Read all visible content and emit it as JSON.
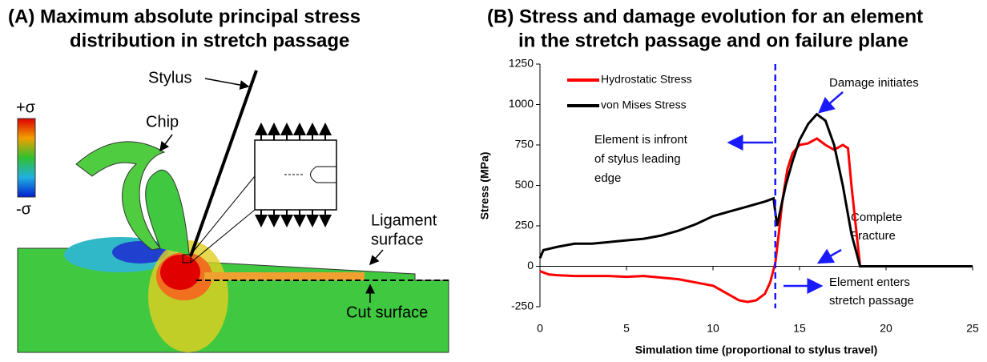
{
  "panel_a": {
    "title": [
      "(A)  Maximum absolute principal stress",
      "distribution in stretch passage"
    ],
    "labels": {
      "stylus": "Stylus",
      "chip": "Chip",
      "plus": "+σ",
      "minus": "-σ",
      "ligament": [
        "Ligament",
        "surface"
      ],
      "cut": "Cut surface"
    }
  },
  "chart_data": {
    "type": "line",
    "title": [
      "(B)  Stress and damage evolution for an element",
      "in the stretch passage and on failure plane"
    ],
    "x_label": "Simulation time (proportional to stylus travel)",
    "y_label": "Stress (MPa)",
    "xlim": [
      0,
      25
    ],
    "xticks": [
      0,
      5,
      10,
      15,
      20,
      25
    ],
    "ylim": [
      -250,
      1250
    ],
    "yticks": [
      -250,
      0,
      250,
      500,
      750,
      1000,
      1250
    ],
    "vline_x": 13.6,
    "series": [
      {
        "name": "Hydrostatic Stress",
        "color": "#ff0000",
        "x": [
          0,
          0.5,
          1,
          2,
          3,
          4,
          5,
          6,
          7,
          8,
          9,
          10,
          11,
          11.5,
          12,
          12.5,
          13,
          13.3,
          13.6,
          13.8,
          14,
          14.3,
          14.6,
          15,
          15.5,
          16,
          16.5,
          17,
          17.5,
          17.8,
          18,
          18.3,
          18.5,
          19,
          25
        ],
        "values": [
          -30,
          -50,
          -55,
          -60,
          -60,
          -60,
          -65,
          -60,
          -70,
          -80,
          -100,
          -120,
          -180,
          -210,
          -220,
          -210,
          -170,
          -100,
          20,
          200,
          400,
          600,
          700,
          750,
          760,
          790,
          750,
          720,
          750,
          730,
          500,
          200,
          0,
          0,
          0
        ]
      },
      {
        "name": "von Mises Stress",
        "color": "#000000",
        "x": [
          0,
          0.2,
          1,
          2,
          3,
          4,
          5,
          6,
          7,
          8,
          9,
          10,
          11,
          12,
          13,
          13.5,
          13.7,
          13.9,
          14.2,
          14.6,
          15,
          15.5,
          16,
          16.5,
          17,
          17.5,
          18,
          18.5,
          25
        ],
        "values": [
          50,
          100,
          120,
          140,
          140,
          150,
          160,
          170,
          190,
          220,
          260,
          310,
          340,
          370,
          400,
          420,
          250,
          350,
          500,
          650,
          780,
          880,
          940,
          900,
          750,
          500,
          200,
          0,
          0
        ]
      }
    ],
    "annotations": {
      "damage": "Damage initiates",
      "front": [
        "Element is infront",
        "of stylus leading",
        "edge"
      ],
      "fracture": [
        "Complete",
        "Fracture"
      ],
      "enters": [
        "Element enters",
        "stretch passage"
      ]
    }
  }
}
